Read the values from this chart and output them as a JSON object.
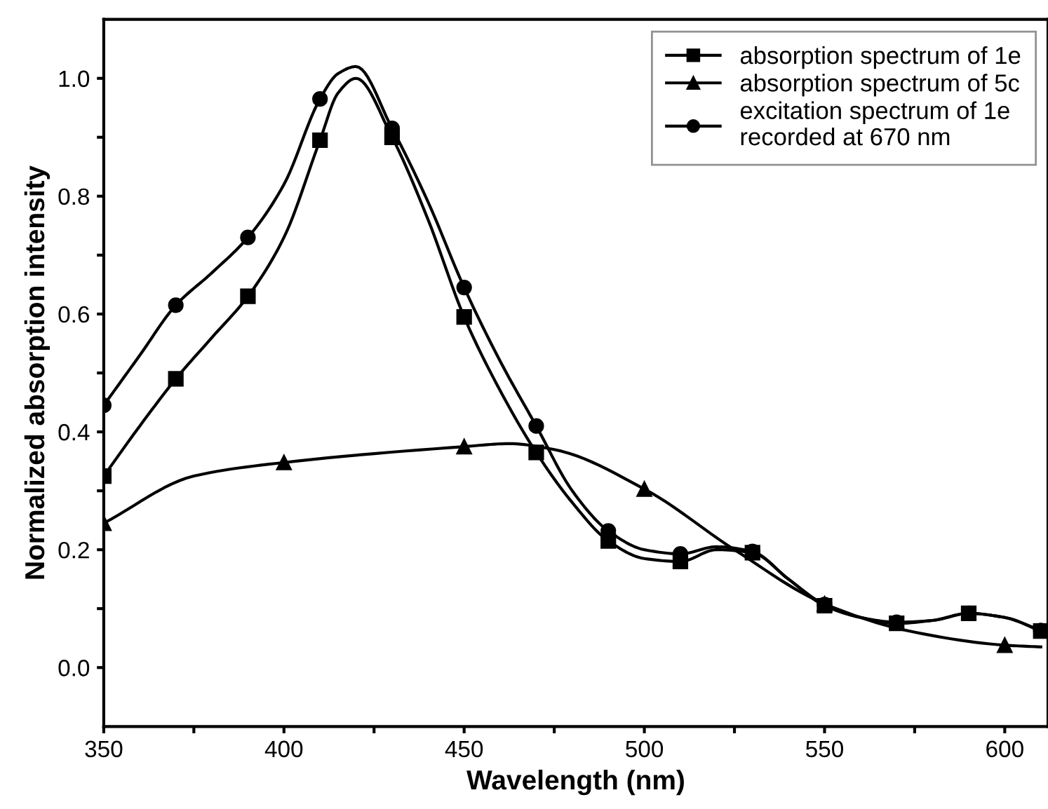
{
  "chart_data": {
    "type": "line",
    "xlabel": "Wavelength (nm)",
    "ylabel": "Normalized absorption intensity",
    "xlim": [
      350,
      612
    ],
    "ylim": [
      -0.1,
      1.1
    ],
    "xticks": [
      350,
      {
        "value": 375,
        "label": null
      },
      400,
      {
        "value": 425,
        "label": null
      },
      450,
      {
        "value": 475,
        "label": null
      },
      500,
      {
        "value": 525,
        "label": null
      },
      550,
      {
        "value": 575,
        "label": null
      },
      600
    ],
    "yticks": [
      {
        "value": 0,
        "label": "0.0"
      },
      {
        "value": 0.1,
        "label": null
      },
      {
        "value": 0.2,
        "label": "0.2"
      },
      {
        "value": 0.3,
        "label": null
      },
      {
        "value": 0.4,
        "label": "0.4"
      },
      {
        "value": 0.5,
        "label": null
      },
      {
        "value": 0.6,
        "label": "0.6"
      },
      {
        "value": 0.7,
        "label": null
      },
      {
        "value": 0.8,
        "label": "0.8"
      },
      {
        "value": 0.9,
        "label": null
      },
      {
        "value": 1.0,
        "label": "1.0"
      }
    ],
    "grid": false,
    "legend": "top right",
    "line_style": "solid",
    "series": [
      {
        "name": "absorption spectrum of 1e",
        "color": "#000000",
        "marker": "square",
        "x": [
          350,
          360,
          370,
          380,
          390,
          400,
          410,
          415,
          420,
          430,
          440,
          450,
          460,
          470,
          480,
          490,
          500,
          510,
          520,
          530,
          540,
          550,
          560,
          570,
          580,
          590,
          600,
          610
        ],
        "values": [
          0.325,
          0.41,
          0.49,
          0.56,
          0.63,
          0.73,
          0.895,
          0.975,
          1.0,
          0.9,
          0.76,
          0.595,
          0.47,
          0.365,
          0.28,
          0.215,
          0.185,
          0.18,
          0.2,
          0.195,
          0.15,
          0.105,
          0.085,
          0.075,
          0.08,
          0.092,
          0.085,
          0.062
        ]
      },
      {
        "name": "absorption spectrum of 5c",
        "color": "#000000",
        "marker": "triangle",
        "x": [
          350,
          375,
          400,
          450,
          462.5,
          475,
          500,
          525,
          550,
          575,
          600,
          610
        ],
        "values": [
          0.245,
          0.325,
          0.348,
          0.375,
          0.38,
          0.37,
          0.303,
          0.2,
          0.108,
          0.06,
          0.038,
          0.035
        ]
      },
      {
        "name": "excitation spectrum of 1e\nrecorded at 670 nm",
        "color": "#000000",
        "marker": "circle",
        "x": [
          350,
          360,
          370,
          380,
          390,
          400,
          410,
          415,
          420,
          430,
          440,
          450,
          460,
          470,
          480,
          490,
          500,
          510,
          520,
          530,
          540,
          550,
          560,
          570,
          580,
          590,
          600,
          610
        ],
        "values": [
          0.445,
          0.53,
          0.615,
          0.67,
          0.73,
          0.82,
          0.965,
          1.008,
          1.02,
          0.915,
          0.79,
          0.645,
          0.52,
          0.41,
          0.3,
          0.232,
          0.2,
          0.193,
          0.205,
          0.197,
          0.15,
          0.107,
          0.085,
          0.077,
          0.08,
          0.092,
          0.085,
          0.063
        ]
      }
    ]
  }
}
